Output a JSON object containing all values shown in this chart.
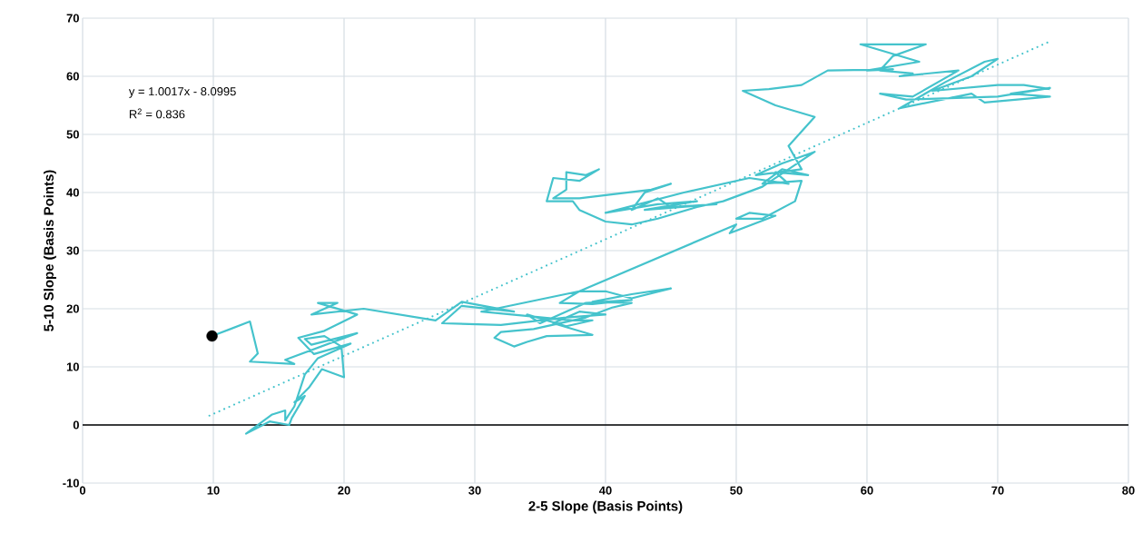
{
  "chart_data": {
    "type": "line",
    "xlabel": "2-5 Slope (Basis Points)",
    "ylabel": "5-10 Slope (Basis Points)",
    "xlim": [
      0,
      80
    ],
    "ylim": [
      -10,
      70
    ],
    "xticks": [
      0,
      10,
      20,
      30,
      40,
      50,
      60,
      70,
      80
    ],
    "yticks": [
      -10,
      0,
      10,
      20,
      30,
      40,
      50,
      60,
      70
    ],
    "grid": true,
    "annotations": [
      "y = 1.0017x - 8.0995",
      "R$^{2}$ = 0.836"
    ],
    "ref_lines": [
      {
        "axis": "y",
        "value": 0,
        "color": "#000000",
        "line_style": "solid"
      }
    ],
    "series": [
      {
        "color": "#45c3cc",
        "line_style": "solid",
        "marker": "none",
        "x": [
          9.9,
          12.8,
          13.4,
          12.8,
          16.2,
          15.5,
          21,
          17.5,
          17,
          18.5,
          19.8,
          20,
          18.3,
          17.3,
          16.2,
          17,
          16,
          15.8,
          14.3,
          12.5,
          14.5,
          15.5,
          15.5,
          16.2,
          17,
          18,
          20.5,
          17.7,
          16.5,
          18.5,
          21,
          18,
          19.5,
          17.5,
          21.5,
          27,
          29,
          33,
          29,
          27.5,
          32,
          37,
          40,
          38,
          36,
          39,
          35.5,
          34,
          33,
          31.5,
          32,
          34.5,
          38.5,
          40.5,
          42,
          39,
          42,
          45,
          42,
          40,
          38,
          36.5,
          39,
          42,
          38.5,
          35,
          34,
          37,
          39,
          37.5,
          30.5,
          38,
          50,
          49.5,
          53,
          51,
          50,
          52,
          54.5,
          55,
          52,
          53.5,
          55.5,
          53,
          54,
          51,
          46,
          40,
          44,
          47,
          43,
          48.5,
          45,
          44,
          42,
          43,
          45,
          43.5,
          38,
          36,
          37,
          37,
          38.5,
          39.5,
          38,
          36,
          35.5,
          37.5,
          38,
          40,
          42,
          44,
          47,
          49,
          52,
          54,
          56,
          53.5,
          51.5,
          55,
          54,
          56,
          53,
          50.5,
          52.5,
          55,
          57,
          62,
          60,
          64,
          59.5,
          64.5,
          62,
          61,
          63.5,
          62.5,
          67,
          63.5,
          61,
          63,
          70,
          74,
          71,
          74,
          69,
          68,
          62.5,
          66,
          69,
          70,
          68,
          65,
          70,
          72,
          74
        ],
        "values": [
          15.3,
          17.8,
          12.3,
          10.9,
          10.5,
          11.2,
          15.8,
          13.8,
          14.8,
          15.3,
          13.5,
          8.2,
          9.6,
          6.4,
          3.9,
          5,
          1.2,
          0,
          0.6,
          -1.5,
          1.8,
          2.5,
          0.8,
          3.2,
          8.7,
          11.5,
          14,
          12.2,
          15,
          16.2,
          19,
          21,
          21,
          19,
          20,
          18,
          21.2,
          19.5,
          20.5,
          17.5,
          17.2,
          18.5,
          19,
          19.5,
          17.5,
          15.5,
          15.3,
          14.3,
          13.5,
          15,
          16,
          16.5,
          18.5,
          20.2,
          21,
          21.2,
          22.5,
          23.5,
          21.8,
          23,
          23,
          21,
          20.8,
          21.5,
          21,
          17.5,
          19,
          17,
          18,
          18,
          19.5,
          23,
          34.5,
          33,
          36,
          36.5,
          35.5,
          35.5,
          38.5,
          42,
          41.5,
          44,
          43,
          43.5,
          41.5,
          42.5,
          40,
          36.5,
          38,
          38.5,
          37,
          38,
          37.5,
          39,
          37,
          40,
          41.5,
          40.5,
          39,
          39,
          40.5,
          43.5,
          43,
          44,
          42,
          42.5,
          38.5,
          38.5,
          37,
          35,
          34.5,
          35.5,
          37.5,
          38.5,
          41,
          44,
          47,
          45,
          43,
          44,
          48,
          53,
          55,
          57.5,
          57.8,
          58.5,
          61,
          61.2,
          61,
          62.5,
          65.5,
          65.5,
          63.5,
          61,
          60.5,
          60,
          61,
          56.5,
          57,
          56,
          56.5,
          58,
          57,
          56.5,
          55.5,
          57,
          54.5,
          59,
          62.5,
          63,
          60,
          57.5,
          58.5,
          58.5,
          57.8
        ]
      },
      {
        "type": "line",
        "color": "#45c3cc",
        "line_style": "dotted",
        "marker": "none",
        "x": [
          9.7,
          74
        ],
        "values": [
          1.6,
          66
        ]
      },
      {
        "type": "scatter",
        "color": "#000000",
        "marker": "circle",
        "x": [
          9.9
        ],
        "values": [
          15.3
        ]
      }
    ]
  }
}
